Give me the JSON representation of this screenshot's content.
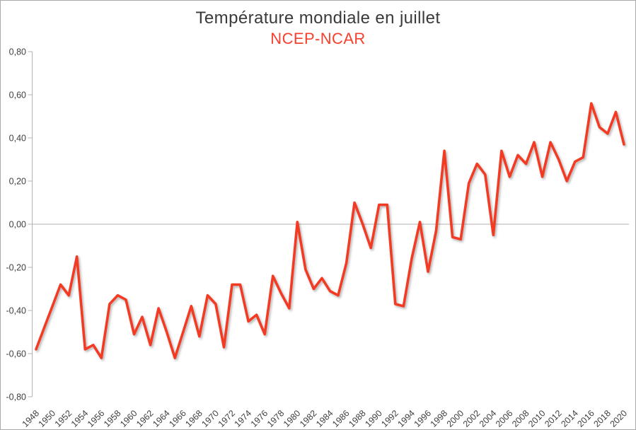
{
  "title": "Température mondiale en juillet",
  "subtitle": "NCEP-NCAR",
  "colors": {
    "line": "#f23b21",
    "subtitle": "#f6402e",
    "title_text": "#3a3a3a",
    "axis": "#b3b3b3",
    "zero_line": "#b0b0b0",
    "tick_label": "#3f3f3f",
    "background": "#ffffff"
  },
  "chart_data": {
    "type": "line",
    "series_name": "NCEP-NCAR",
    "title": "Température mondiale en juillet",
    "subtitle": "NCEP-NCAR",
    "xlabel": "",
    "ylabel": "",
    "ylim": [
      -0.8,
      0.8
    ],
    "ytick_step": 0.2,
    "yticks": [
      0.8,
      0.6,
      0.4,
      0.2,
      0.0,
      -0.2,
      -0.4,
      -0.6,
      -0.8
    ],
    "ytick_labels": [
      "0,80",
      "0,60",
      "0,40",
      "0,20",
      "0,00",
      "-0,20",
      "-0,40",
      "-0,60",
      "-0,80"
    ],
    "xtick_labels": [
      "1948",
      "1950",
      "1952",
      "1954",
      "1956",
      "1958",
      "1960",
      "1962",
      "1964",
      "1966",
      "1968",
      "1970",
      "1972",
      "1974",
      "1976",
      "1978",
      "1980",
      "1982",
      "1984",
      "1986",
      "1988",
      "1990",
      "1992",
      "1994",
      "1996",
      "1998",
      "2000",
      "2002",
      "2004",
      "2006",
      "2008",
      "2010",
      "2012",
      "2014",
      "2016",
      "2018",
      "2020"
    ],
    "grid": "zero-line-only",
    "legend": "none",
    "years": [
      1948,
      1949,
      1950,
      1951,
      1952,
      1953,
      1954,
      1955,
      1956,
      1957,
      1958,
      1959,
      1960,
      1961,
      1962,
      1963,
      1964,
      1965,
      1966,
      1967,
      1968,
      1969,
      1970,
      1971,
      1972,
      1973,
      1974,
      1975,
      1976,
      1977,
      1978,
      1979,
      1980,
      1981,
      1982,
      1983,
      1984,
      1985,
      1986,
      1987,
      1988,
      1989,
      1990,
      1991,
      1992,
      1993,
      1994,
      1995,
      1996,
      1997,
      1998,
      1999,
      2000,
      2001,
      2002,
      2003,
      2004,
      2005,
      2006,
      2007,
      2008,
      2009,
      2010,
      2011,
      2012,
      2013,
      2014,
      2015,
      2016,
      2017,
      2018,
      2019,
      2020
    ],
    "values": [
      -0.58,
      -0.48,
      -0.38,
      -0.28,
      -0.33,
      -0.15,
      -0.58,
      -0.56,
      -0.62,
      -0.37,
      -0.33,
      -0.35,
      -0.51,
      -0.43,
      -0.56,
      -0.39,
      -0.5,
      -0.62,
      -0.5,
      -0.38,
      -0.52,
      -0.33,
      -0.37,
      -0.57,
      -0.28,
      -0.28,
      -0.45,
      -0.42,
      -0.51,
      -0.24,
      -0.32,
      -0.39,
      0.01,
      -0.21,
      -0.3,
      -0.25,
      -0.31,
      -0.33,
      -0.18,
      0.1,
      0.0,
      -0.11,
      0.09,
      0.09,
      -0.37,
      -0.38,
      -0.16,
      0.01,
      -0.22,
      -0.03,
      0.34,
      -0.06,
      -0.07,
      0.19,
      0.28,
      0.23,
      -0.05,
      0.34,
      0.22,
      0.32,
      0.28,
      0.38,
      0.22,
      0.38,
      0.3,
      0.2,
      0.29,
      0.31,
      0.56,
      0.45,
      0.42,
      0.52,
      0.37
    ]
  }
}
